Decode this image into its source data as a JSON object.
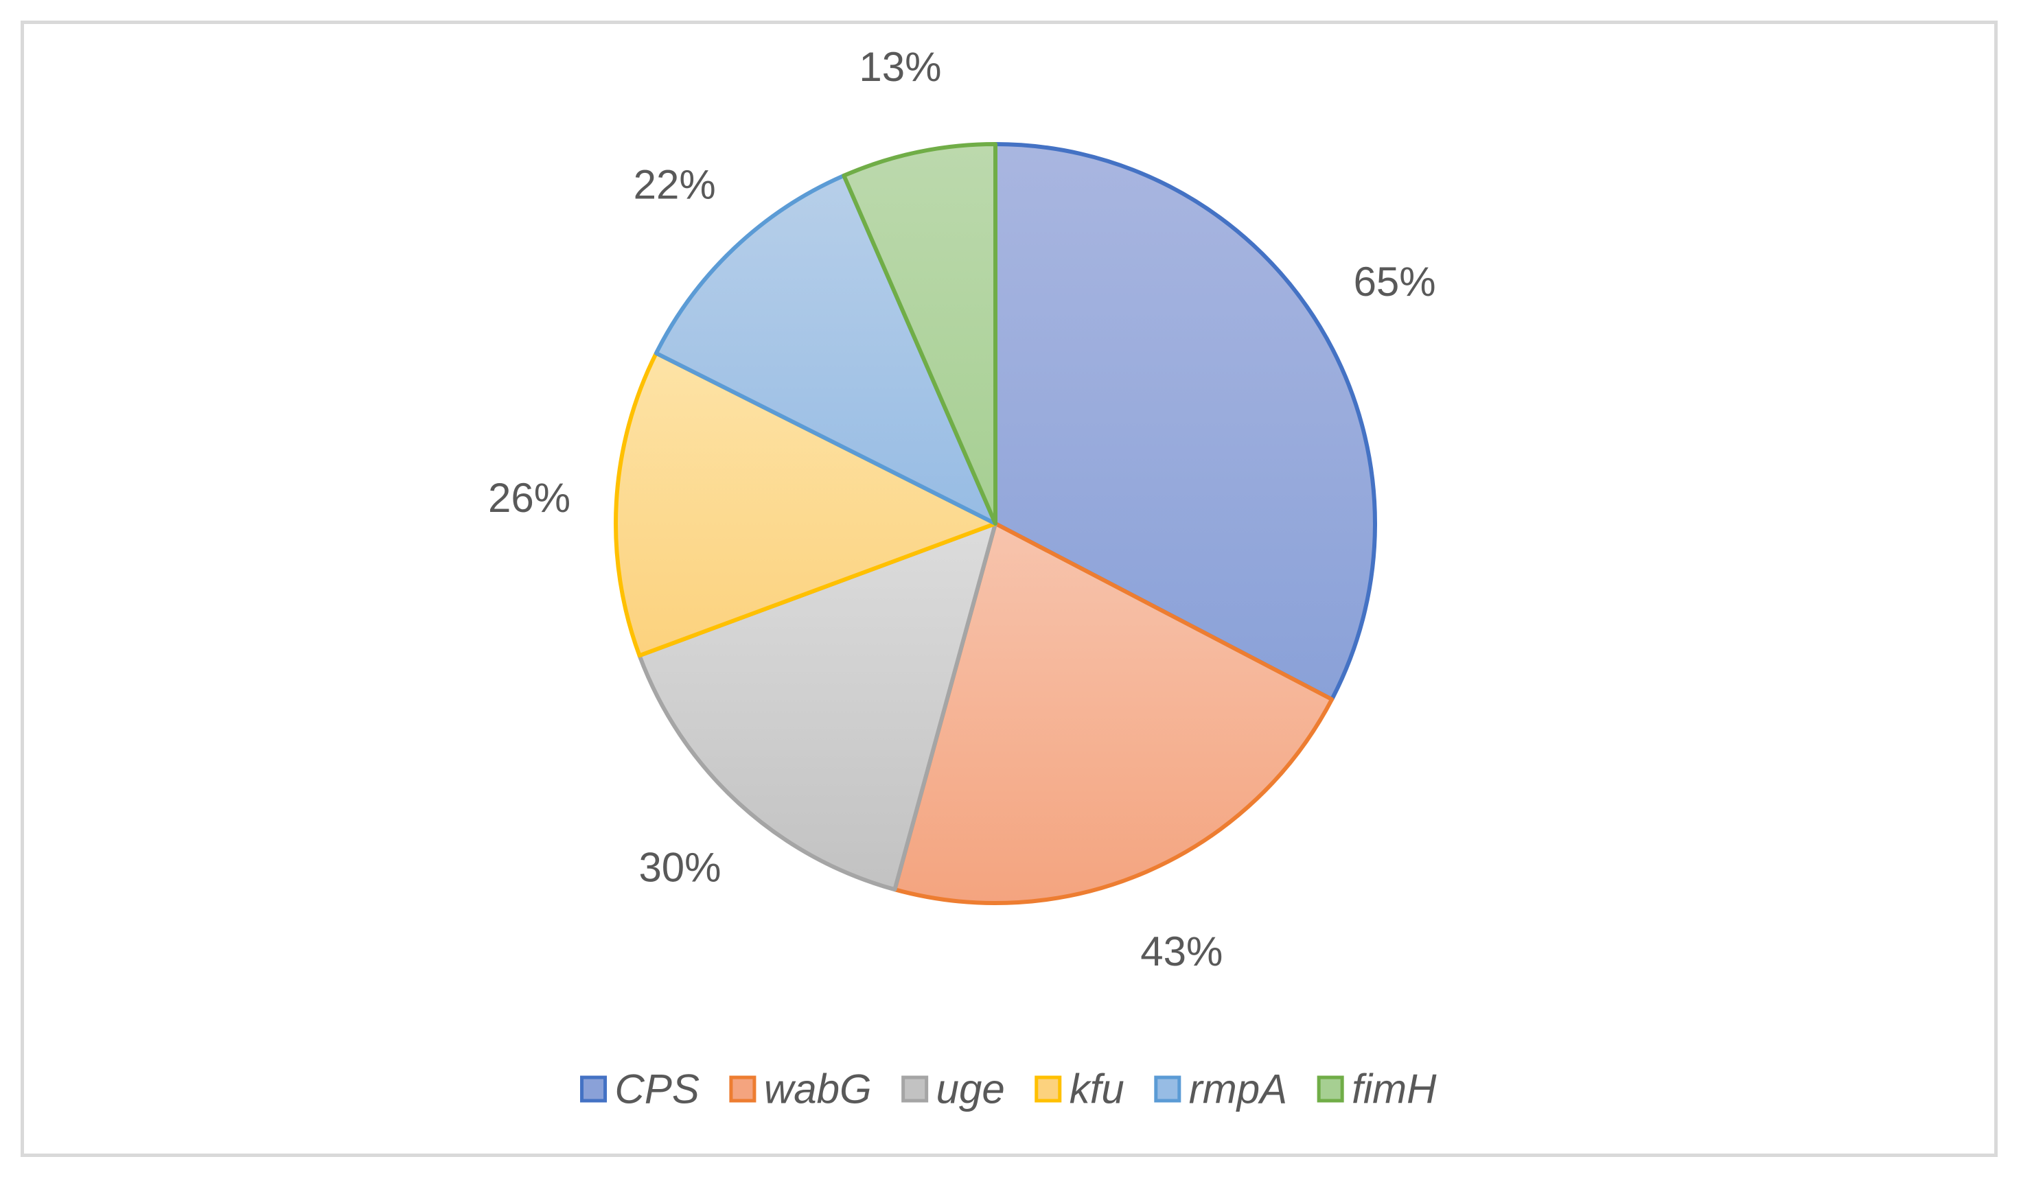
{
  "chart_data": {
    "type": "pie",
    "title": "",
    "categories": [
      "CPS",
      "wabG",
      "uge",
      "kfu",
      "rmpA",
      "fimH"
    ],
    "values": [
      65,
      43,
      30,
      26,
      22,
      13
    ],
    "data_labels": [
      "65%",
      "43%",
      "30%",
      "26%",
      "22%",
      "13%"
    ],
    "colors": {
      "CPS": {
        "fill_top": "#a9b6e0",
        "fill_bottom": "#8aa1d8",
        "stroke": "#4472c4"
      },
      "wabG": {
        "fill_top": "#f7c4ad",
        "fill_bottom": "#f4a47f",
        "stroke": "#ed7d31"
      },
      "uge": {
        "fill_top": "#dcdcdc",
        "fill_bottom": "#c2c2c2",
        "stroke": "#a5a5a5"
      },
      "kfu": {
        "fill_top": "#fde3a6",
        "fill_bottom": "#fcd27e",
        "stroke": "#ffc000"
      },
      "rmpA": {
        "fill_top": "#b7cfe9",
        "fill_bottom": "#97bce4",
        "stroke": "#5b9bd5"
      },
      "fimH": {
        "fill_top": "#bcd9ad",
        "fill_bottom": "#a6cf92",
        "stroke": "#70ad47"
      }
    },
    "start_angle_deg": 0,
    "direction": "clockwise",
    "legend": {
      "position": "bottom",
      "entries": [
        "CPS",
        "wabG",
        "uge",
        "kfu",
        "rmpA",
        "fimH"
      ]
    },
    "frame_border_color": "#d9d9d9",
    "text_color": "#595959"
  }
}
